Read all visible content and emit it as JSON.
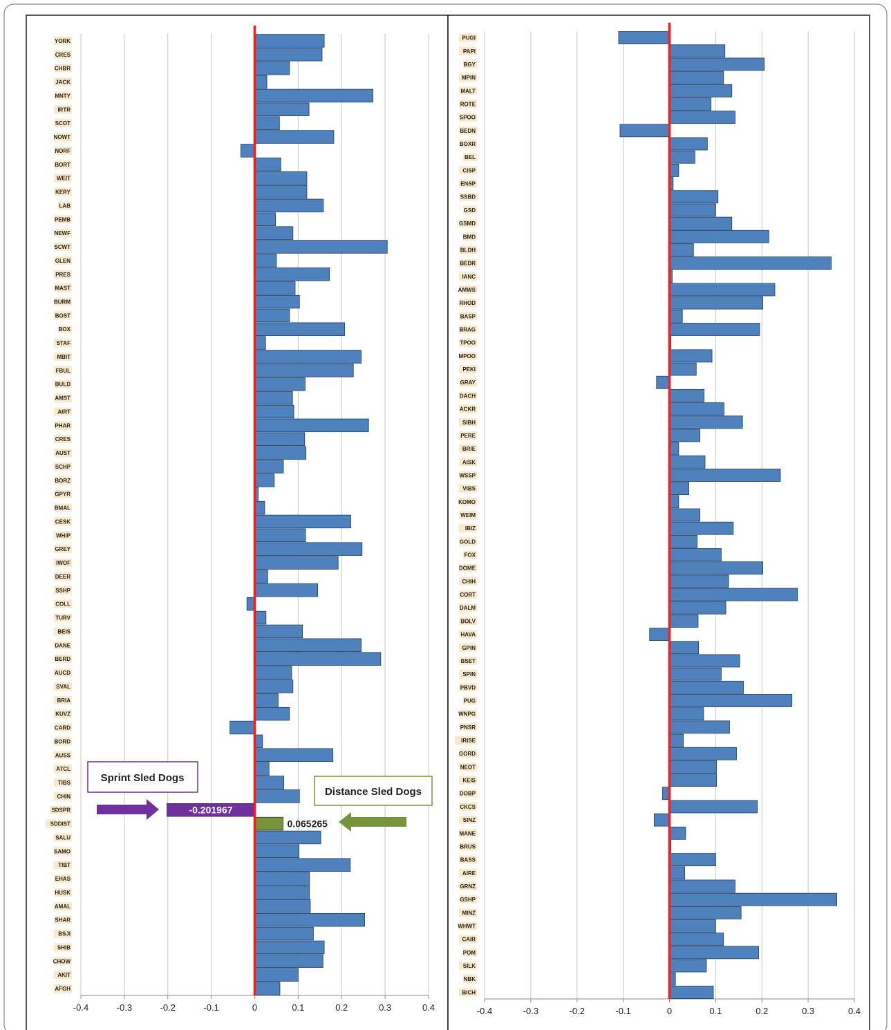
{
  "chart_data": [
    {
      "type": "bar",
      "orientation": "horizontal",
      "title": "",
      "xlabel": "",
      "ylabel": "",
      "xlim": [
        -0.4,
        0.4
      ],
      "xticks": [
        "-0.4",
        "-0.3",
        "-0.2",
        "-0.1",
        "0",
        "0.1",
        "0.2",
        "0.3",
        "0.4"
      ],
      "grid": true,
      "zero_line_color": "#ff1a1a",
      "bar_color": "#4f81bd",
      "categories": [
        "YORK",
        "CRES",
        "CHBR",
        "JACK",
        "MNTY",
        "IRTR",
        "SCOT",
        "NOWT",
        "NORF",
        "BORT",
        "WEIT",
        "KERY",
        "LAB",
        "PEMB",
        "NEWF",
        "SCWT",
        "GLEN",
        "PRES",
        "MAST",
        "BURM",
        "BOST",
        "BOX",
        "STAF",
        "MBIT",
        "FBUL",
        "BULD",
        "AMST",
        "AIRT",
        "PHAR",
        "CRES",
        "AUST",
        "SCHP",
        "BORZ",
        "GPYR",
        "BMAL",
        "CESK",
        "WHIP",
        "GREY",
        "IWOF",
        "DEER",
        "SSHP",
        "COLL",
        "TURV",
        "BEIS",
        "DANE",
        "BERD",
        "AUCD",
        "SVAL",
        "BRIA",
        "KUVZ",
        "CARD",
        "BORD",
        "AUSS",
        "ATCL",
        "TIBS",
        "CHIN",
        "SDSPR",
        "SDDIST",
        "SALU",
        "SAMO",
        "TIBT",
        "EHAS",
        "HUSK",
        "AMAL",
        "SHAR",
        "BSJI",
        "SHIB",
        "CHOW",
        "AKIT",
        "AFGH"
      ],
      "values": [
        0.16,
        0.155,
        0.08,
        0.028,
        0.272,
        0.125,
        0.057,
        0.182,
        -0.032,
        0.06,
        0.12,
        0.12,
        0.158,
        0.048,
        0.088,
        0.305,
        0.05,
        0.172,
        0.093,
        0.103,
        0.08,
        0.207,
        0.025,
        0.245,
        0.227,
        0.116,
        0.087,
        0.09,
        0.262,
        0.115,
        0.118,
        0.066,
        0.045,
        0.008,
        0.023,
        0.221,
        0.117,
        0.247,
        0.192,
        0.03,
        0.145,
        -0.018,
        0.026,
        0.11,
        0.245,
        0.29,
        0.085,
        0.088,
        0.054,
        0.08,
        -0.057,
        0.018,
        0.18,
        0.033,
        0.067,
        0.103,
        -0.201967,
        0.065265,
        0.152,
        0.102,
        0.22,
        0.126,
        0.126,
        0.128,
        0.253,
        0.135,
        0.16,
        0.157,
        0.1,
        0.058
      ],
      "highlight": [
        {
          "category": "SDSPR",
          "label": "-0.201967",
          "legend": "Sprint Sled Dogs",
          "color": "#7030a0"
        },
        {
          "category": "SDDIST",
          "label": "0.065265",
          "legend": "Distance Sled Dogs",
          "color": "#77933c"
        }
      ]
    },
    {
      "type": "bar",
      "orientation": "horizontal",
      "title": "",
      "xlabel": "",
      "ylabel": "",
      "xlim": [
        -0.4,
        0.4
      ],
      "xticks": [
        "-0.4",
        "-0.3",
        "-0.2",
        "-0.1",
        "0",
        "0.1",
        "0.2",
        "0.3",
        "0.4"
      ],
      "grid": true,
      "zero_line_color": "#ff1a1a",
      "bar_color": "#4f81bd",
      "categories": [
        "PUGI",
        "PAPI",
        "BGY",
        "MPIN",
        "MALT",
        "ROTE",
        "SPOO",
        "BEDN",
        "BOXR",
        "BEL",
        "CISP",
        "ENSP",
        "SSBD",
        "GSD",
        "GSMD",
        "BMD",
        "BLDH",
        "BEDR",
        "IANC",
        "AMWS",
        "RHOD",
        "BASP",
        "BRAG",
        "TPOO",
        "MPOO",
        "PEKI",
        "GRAY",
        "DACH",
        "ACKR",
        "SIBH",
        "PERE",
        "BRIE",
        "AISK",
        "WSSP",
        "VIBS",
        "KOMO",
        "WEIM",
        "IBIZ",
        "GOLD",
        "FOX",
        "DOME",
        "CHIH",
        "CORT",
        "DALM",
        "BOLV",
        "HAVA",
        "GPIN",
        "BSET",
        "SPIN",
        "PBVD",
        "PUG",
        "WNPG",
        "PNSR",
        "IRISE",
        "GORD",
        "NEOT",
        "KEIS",
        "DOBP",
        "CKCS",
        "SINZ",
        "MANE",
        "BRUS",
        "BASS",
        "AIRE",
        "GRNZ",
        "GSHP",
        "MINZ",
        "WHWT",
        "CAIR",
        "POM",
        "SILK",
        "NBK",
        "BICH"
      ],
      "values": [
        -0.11,
        0.12,
        0.205,
        0.117,
        0.135,
        0.09,
        0.142,
        -0.107,
        0.082,
        0.055,
        0.02,
        0.008,
        0.105,
        0.1,
        0.135,
        0.215,
        0.052,
        0.35,
        0.006,
        0.228,
        0.202,
        0.028,
        0.195,
        0.003,
        0.092,
        0.058,
        -0.028,
        0.075,
        0.118,
        0.158,
        0.066,
        0.02,
        0.077,
        0.24,
        0.042,
        0.02,
        0.066,
        0.138,
        0.06,
        0.112,
        0.202,
        0.128,
        0.277,
        0.122,
        0.062,
        -0.043,
        0.063,
        0.152,
        0.112,
        0.16,
        0.265,
        0.074,
        0.13,
        0.03,
        0.145,
        0.102,
        0.102,
        -0.015,
        0.19,
        -0.033,
        0.035,
        0.003,
        0.1,
        0.033,
        0.142,
        0.362,
        0.155,
        0.1,
        0.117,
        0.193,
        0.08,
        0.013,
        0.095
      ]
    }
  ],
  "annotations": {
    "sprint_label": "Sprint Sled Dogs",
    "sprint_value": "-0.201967",
    "distance_label": "Distance Sled Dogs",
    "distance_value": "0.065265"
  }
}
